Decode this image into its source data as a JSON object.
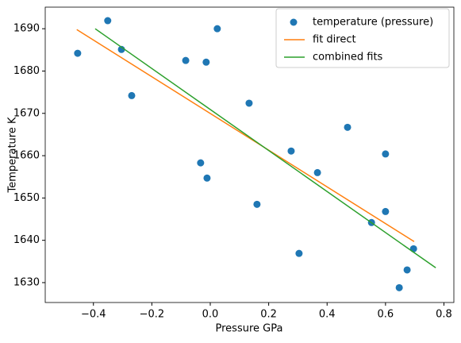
{
  "chart_data": {
    "type": "scatter",
    "xlabel": "Pressure GPa",
    "ylabel": "Temperature K",
    "xlim": [
      -0.565,
      0.834
    ],
    "ylim": [
      1625.3,
      1695.1
    ],
    "xticks": [
      {
        "value": -0.4,
        "label": "−0.4"
      },
      {
        "value": -0.2,
        "label": "−0.2"
      },
      {
        "value": 0.0,
        "label": "0.0"
      },
      0.2,
      0.4,
      0.6,
      0.8
    ],
    "yticks": [
      1630,
      1640,
      1650,
      1660,
      1670,
      1680,
      1690
    ],
    "legend": "upper right",
    "series": [
      {
        "name": "temperature (pressure)",
        "type": "scatter",
        "color": "#1f77b4",
        "x": [
          -0.454,
          -0.351,
          -0.304,
          -0.269,
          -0.084,
          -0.014,
          0.024,
          -0.033,
          -0.011,
          0.133,
          0.16,
          0.277,
          0.304,
          0.367,
          0.47,
          0.6,
          0.6,
          0.552,
          0.696,
          0.674,
          0.647
        ],
        "y": [
          1684.2,
          1691.9,
          1685.1,
          1674.2,
          1682.5,
          1682.1,
          1690.0,
          1658.3,
          1654.7,
          1672.4,
          1648.5,
          1661.1,
          1636.9,
          1656.0,
          1666.7,
          1660.4,
          1646.8,
          1644.2,
          1638.0,
          1633.0,
          1628.8
        ]
      },
      {
        "name": "fit direct",
        "type": "line",
        "color": "#ff7f0e",
        "x": [
          -0.457,
          0.698
        ],
        "y": [
          1689.8,
          1639.7
        ]
      },
      {
        "name": "combined fits",
        "type": "line",
        "color": "#2ca02c",
        "x": [
          -0.394,
          0.772
        ],
        "y": [
          1690.0,
          1633.5
        ]
      }
    ]
  }
}
